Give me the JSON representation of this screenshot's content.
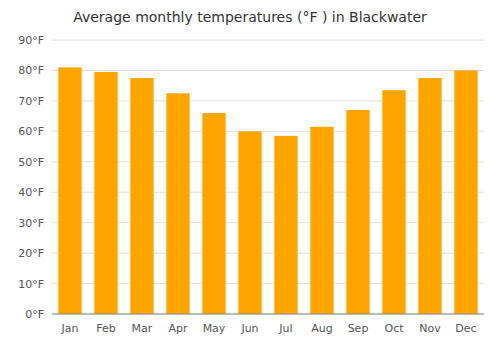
{
  "chart_data": {
    "type": "bar",
    "title": "Average monthly temperatures (°F ) in Blackwater",
    "categories": [
      "Jan",
      "Feb",
      "Mar",
      "Apr",
      "May",
      "Jun",
      "Jul",
      "Aug",
      "Sep",
      "Oct",
      "Nov",
      "Dec"
    ],
    "values": [
      81,
      79.5,
      77.5,
      72.5,
      66,
      60,
      58.5,
      61.5,
      67,
      73.5,
      77.5,
      80
    ],
    "color": "#FFA500",
    "ylim": [
      0,
      90
    ],
    "yticks": [
      {
        "value": 0,
        "label": "0°F"
      },
      {
        "value": 10,
        "label": "10°F"
      },
      {
        "value": 20,
        "label": "20°F"
      },
      {
        "value": 30,
        "label": "30°F"
      },
      {
        "value": 40,
        "label": "40°F"
      },
      {
        "value": 50,
        "label": "50°F"
      },
      {
        "value": 60,
        "label": "60°F"
      },
      {
        "value": 70,
        "label": "70°F"
      },
      {
        "value": 80,
        "label": "80°F"
      },
      {
        "value": 90,
        "label": "90°F"
      }
    ],
    "grid": true
  }
}
